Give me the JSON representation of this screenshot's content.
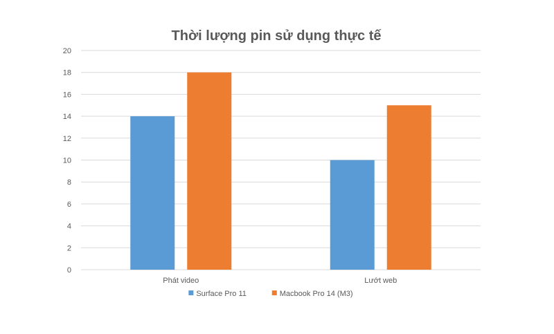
{
  "chart_data": {
    "type": "bar",
    "title": "Thời lượng pin sử dụng thực tế",
    "categories": [
      "Phát video",
      "Lướt web"
    ],
    "series": [
      {
        "name": "Surface Pro 11",
        "values": [
          14,
          10
        ],
        "color": "#5B9BD5"
      },
      {
        "name": "Macbook Pro 14 (M3)",
        "values": [
          18,
          15
        ],
        "color": "#ED7D31"
      }
    ],
    "ylim": [
      0,
      20
    ],
    "yticks": [
      "0",
      "2",
      "4",
      "6",
      "8",
      "10",
      "12",
      "14",
      "16",
      "18",
      "20"
    ],
    "grid": true,
    "legend_position": "bottom",
    "gridline_color": "#D9D9D9"
  }
}
